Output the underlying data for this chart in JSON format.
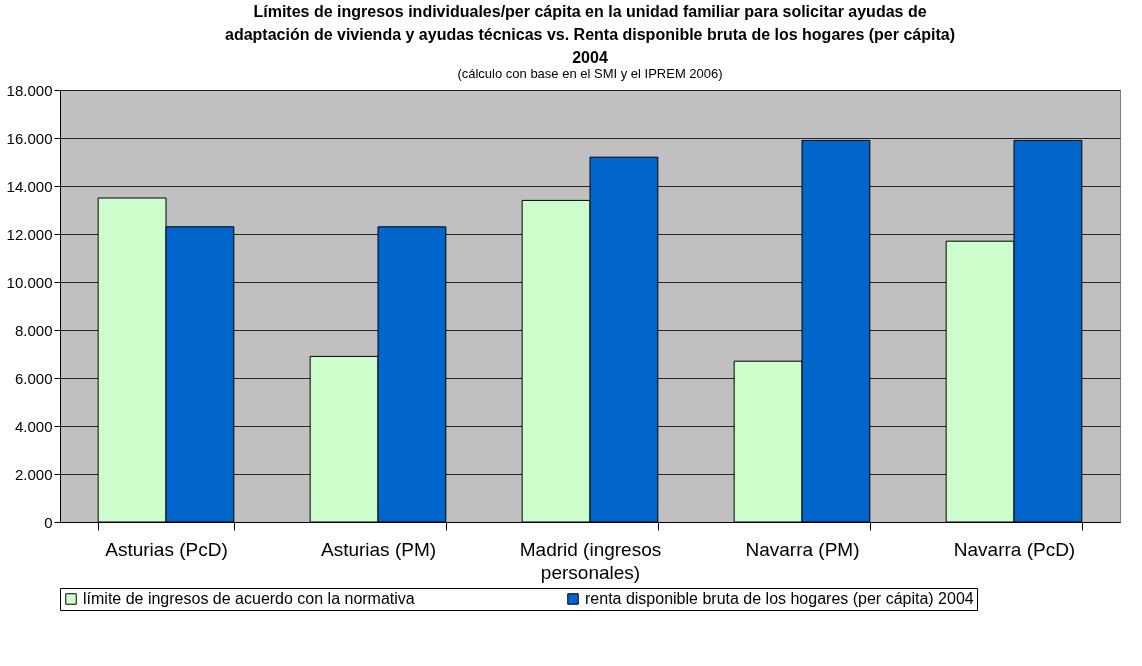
{
  "chart_data": {
    "type": "bar",
    "title": "Límites de ingresos individuales/per cápita en la unidad familiar para solicitar ayudas de\nadaptación de vivienda y ayudas técnicas vs. Renta disponible bruta de los hogares (per cápita)\n2004",
    "subtitle": "(cálculo con base en el SMI y el IPREM 2006)",
    "categories": [
      "Asturias (PcD)",
      "Asturias (PM)",
      "Madrid (ingresos personales)",
      "Navarra (PM)",
      "Navarra (PcD)"
    ],
    "series": [
      {
        "name": "límite de ingresos de acuerdo con la normativa",
        "color": "#ccffcc",
        "values": [
          13500,
          6900,
          13400,
          6700,
          11700
        ]
      },
      {
        "name": "renta disponible bruta de los hogares (per cápita) 2004",
        "color": "#0066cc",
        "values": [
          12300,
          12300,
          15200,
          15900,
          15900
        ]
      }
    ],
    "ylim": [
      0,
      18000
    ],
    "yticks": [
      {
        "value": 0,
        "label": "0"
      },
      {
        "value": 2000,
        "label": "2.000"
      },
      {
        "value": 4000,
        "label": "4.000"
      },
      {
        "value": 6000,
        "label": "6.000"
      },
      {
        "value": 8000,
        "label": "8.000"
      },
      {
        "value": 10000,
        "label": "10.000"
      },
      {
        "value": 12000,
        "label": "12.000"
      },
      {
        "value": 14000,
        "label": "14.000"
      },
      {
        "value": 16000,
        "label": "16.000"
      },
      {
        "value": 18000,
        "label": "18.000"
      }
    ],
    "grid": "y",
    "legend": "bottom"
  }
}
